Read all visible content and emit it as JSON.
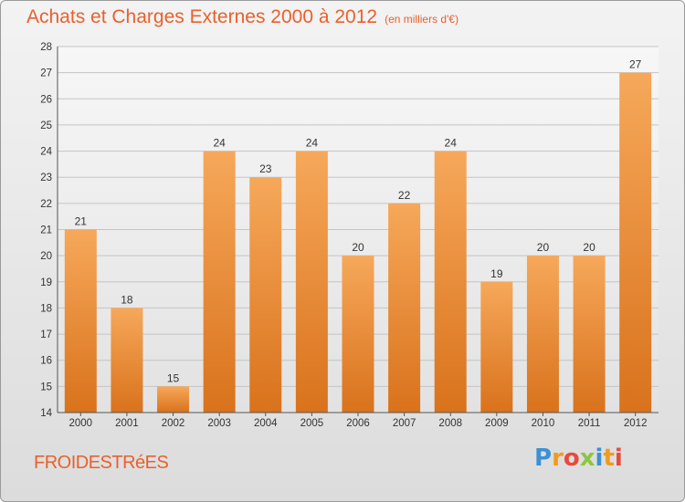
{
  "header": {
    "title": "Achats et Charges Externes 2000 à 2012",
    "subtitle": "(en milliers d'€)"
  },
  "footer": {
    "commune": "FROIDESTRéES",
    "logo_letters": [
      "P",
      "r",
      "o",
      "x",
      "i",
      "t",
      "i"
    ],
    "logo_colors": [
      "#3d8fd6",
      "#f29a1f",
      "#e84a3c",
      "#8cc63f",
      "#3d8fd6",
      "#f29a1f",
      "#e84a3c"
    ]
  },
  "chart_data": {
    "type": "bar",
    "title": "Achats et Charges Externes 2000 à 2012",
    "subtitle": "(en milliers d'€)",
    "categories": [
      "2000",
      "2001",
      "2002",
      "2003",
      "2004",
      "2005",
      "2006",
      "2007",
      "2008",
      "2009",
      "2010",
      "2011",
      "2012"
    ],
    "values": [
      21,
      18,
      15,
      24,
      23,
      24,
      20,
      22,
      24,
      19,
      20,
      20,
      27
    ],
    "ylim": [
      14,
      28
    ],
    "yticks": [
      14,
      15,
      16,
      17,
      18,
      19,
      20,
      21,
      22,
      23,
      24,
      25,
      26,
      27,
      28
    ],
    "grid": true,
    "bar_color_light": "#f6a85a",
    "bar_color_dark": "#d9721c",
    "title_color": "#e8612c"
  }
}
